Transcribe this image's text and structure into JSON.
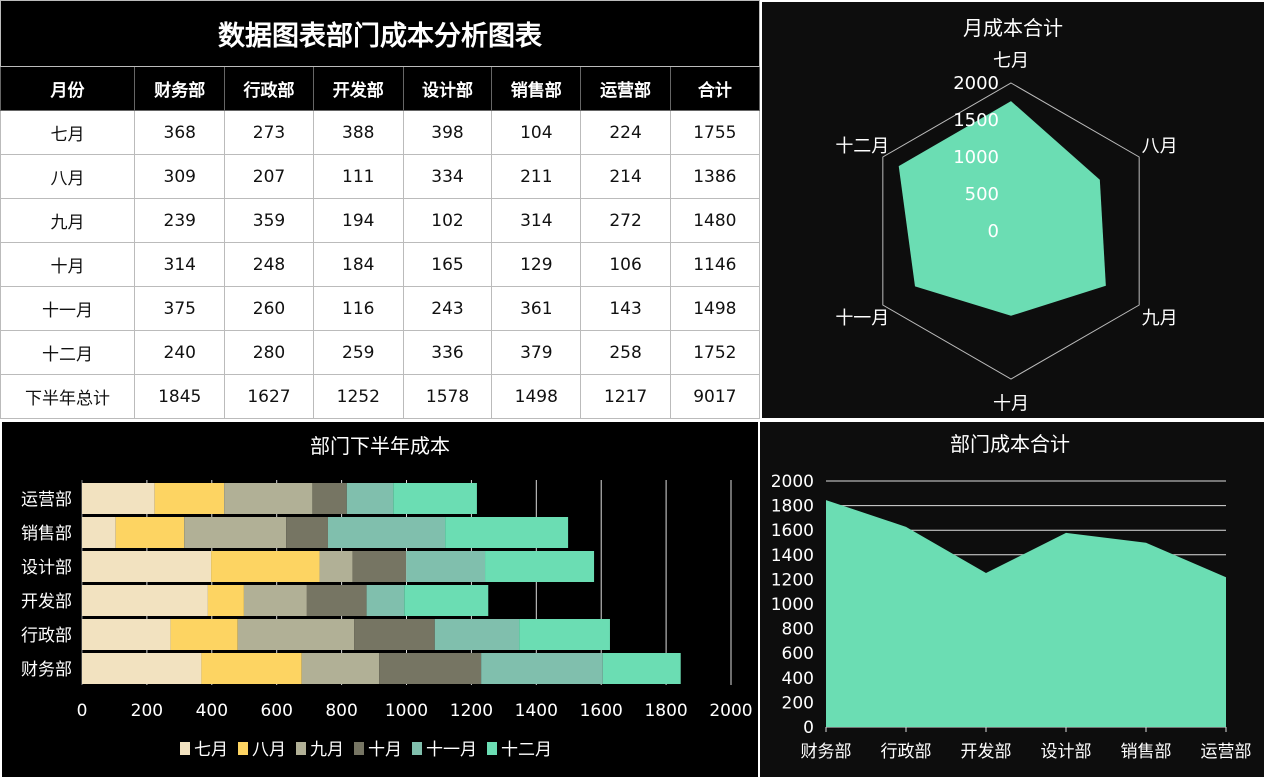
{
  "table": {
    "title": "数据图表部门成本分析图表",
    "headers": [
      "月份",
      "财务部",
      "行政部",
      "开发部",
      "设计部",
      "销售部",
      "运营部",
      "合计"
    ],
    "rows": [
      [
        "七月",
        "368",
        "273",
        "388",
        "398",
        "104",
        "224",
        "1755"
      ],
      [
        "八月",
        "309",
        "207",
        "111",
        "334",
        "211",
        "214",
        "1386"
      ],
      [
        "九月",
        "239",
        "359",
        "194",
        "102",
        "314",
        "272",
        "1480"
      ],
      [
        "十月",
        "314",
        "248",
        "184",
        "165",
        "129",
        "106",
        "1146"
      ],
      [
        "十一月",
        "375",
        "260",
        "116",
        "243",
        "361",
        "143",
        "1498"
      ],
      [
        "十二月",
        "240",
        "280",
        "259",
        "336",
        "379",
        "258",
        "1752"
      ],
      [
        "下半年总计",
        "1845",
        "1627",
        "1252",
        "1578",
        "1498",
        "1217",
        "9017"
      ]
    ]
  },
  "chart_data": [
    {
      "type": "radar",
      "title": "月成本合计",
      "categories": [
        "七月",
        "八月",
        "九月",
        "十月",
        "十一月",
        "十二月"
      ],
      "values": [
        1755,
        1386,
        1480,
        1146,
        1498,
        1752
      ],
      "ticks": [
        "0",
        "500",
        "1000",
        "1500",
        "2000"
      ],
      "range": [
        0,
        2000
      ],
      "color": "#6BDDB3"
    },
    {
      "type": "bar",
      "orientation": "horizontal-stacked",
      "title": "部门下半年成本",
      "categories": [
        "财务部",
        "行政部",
        "开发部",
        "设计部",
        "销售部",
        "运营部"
      ],
      "series": [
        {
          "name": "七月",
          "values": [
            368,
            273,
            388,
            398,
            104,
            224
          ],
          "color": "#F2E2C0"
        },
        {
          "name": "八月",
          "values": [
            309,
            207,
            111,
            334,
            211,
            214
          ],
          "color": "#FDD462"
        },
        {
          "name": "九月",
          "values": [
            239,
            359,
            194,
            102,
            314,
            272
          ],
          "color": "#B1B096"
        },
        {
          "name": "十月",
          "values": [
            314,
            248,
            184,
            165,
            129,
            106
          ],
          "color": "#767563"
        },
        {
          "name": "十一月",
          "values": [
            375,
            260,
            116,
            243,
            361,
            143
          ],
          "color": "#80BFAD"
        },
        {
          "name": "十二月",
          "values": [
            240,
            280,
            259,
            336,
            379,
            258
          ],
          "color": "#6BDDB3"
        }
      ],
      "xlim": [
        0,
        2000
      ],
      "xticks": [
        "0",
        "200",
        "400",
        "600",
        "800",
        "1000",
        "1200",
        "1400",
        "1600",
        "1800",
        "2000"
      ],
      "legend": "bottom",
      "grid": true
    },
    {
      "type": "area",
      "title": "部门成本合计",
      "categories": [
        "财务部",
        "行政部",
        "开发部",
        "设计部",
        "销售部",
        "运营部"
      ],
      "values": [
        1845,
        1627,
        1252,
        1578,
        1498,
        1217
      ],
      "ylim": [
        0,
        2000
      ],
      "yticks": [
        "0",
        "200",
        "400",
        "600",
        "800",
        "1000",
        "1200",
        "1400",
        "1600",
        "1800",
        "2000"
      ],
      "grid": true,
      "color": "#6BDDB3"
    }
  ]
}
